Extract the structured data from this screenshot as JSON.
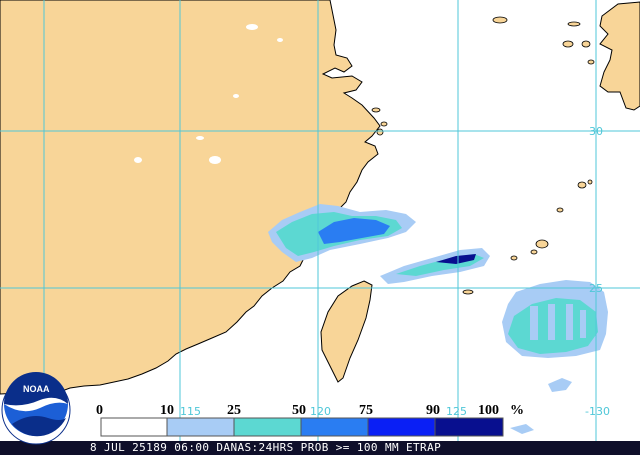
{
  "colors": {
    "land": "#f8d598",
    "ocean": "#ffffff",
    "coast": "#000000",
    "grid": "#4fc7d8",
    "footer_bg": "#0f0f2a",
    "footer_text": "#ffffff"
  },
  "grid_labels": {
    "lat_30": "30",
    "lat_25": "25",
    "lon_115": "115",
    "lon_120": "120",
    "lon_125": "125",
    "lon_130": "-130"
  },
  "legend": {
    "ticks": [
      "0",
      "10",
      "25",
      "50",
      "75",
      "90",
      "100"
    ],
    "unit": "%",
    "bins": [
      {
        "range": "0-10",
        "color": "#ffffff"
      },
      {
        "range": "10-25",
        "color": "#a8ccf5"
      },
      {
        "range": "25-50",
        "color": "#5cd8d2"
      },
      {
        "range": "50-75",
        "color": "#2a7df2"
      },
      {
        "range": "75-90",
        "color": "#0a1ff5"
      },
      {
        "range": "90-100",
        "color": "#080f8f"
      }
    ]
  },
  "footer": {
    "text": "8 JUL 25189 06:00 DANAS:24HRS PROB >= 100 MM ETRAP"
  },
  "logo": {
    "text": "NOAA"
  }
}
